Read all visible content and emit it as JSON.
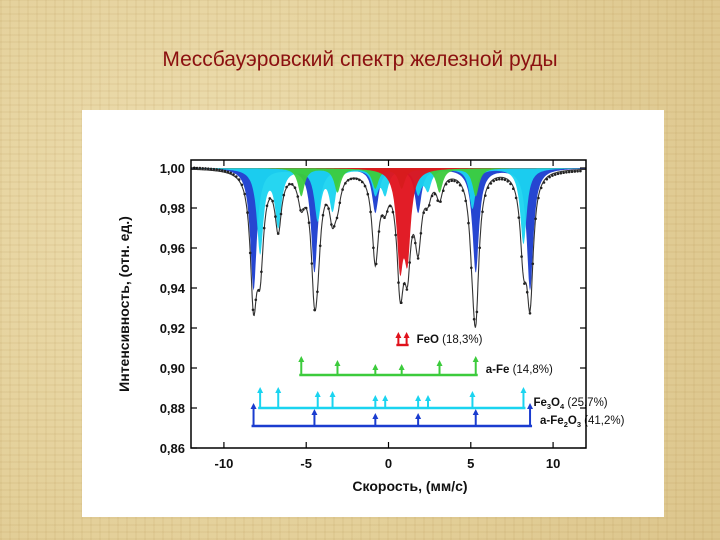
{
  "slide": {
    "title": "Мессбауэровский спектр железной руды"
  },
  "chart_data": {
    "type": "line",
    "title": "",
    "xlabel": "Скорость, (мм/с)",
    "ylabel": "Интенсивность, (отн. ед.)",
    "xlim": [
      -12,
      12
    ],
    "ylim": [
      0.86,
      1.004
    ],
    "xticks": [
      "-10",
      "-5",
      "0",
      "5",
      "10"
    ],
    "xtick_values": [
      -10,
      -5,
      0,
      5,
      10
    ],
    "yticks": [
      "0,86",
      "0,88",
      "0,90",
      "0,92",
      "0,94",
      "0,96",
      "0,98",
      "1,00"
    ],
    "ytick_values": [
      0.86,
      0.88,
      0.9,
      0.92,
      0.94,
      0.96,
      0.98,
      1.0
    ],
    "grid": false,
    "baseline": 1.0,
    "phases": [
      {
        "id": "fe2o3",
        "name_parts": [
          "a-Fe",
          "2",
          "O",
          "3"
        ],
        "percent": "(41,2%)",
        "color": "#1a3ccf",
        "stick_y": 0.871,
        "sticks": [
          {
            "x": -8.2,
            "h": 0.011
          },
          {
            "x": -4.5,
            "h": 0.008
          },
          {
            "x": -0.8,
            "h": 0.006
          },
          {
            "x": 1.8,
            "h": 0.006
          },
          {
            "x": 5.3,
            "h": 0.008
          },
          {
            "x": 8.6,
            "h": 0.011
          }
        ],
        "peaks": [
          {
            "x": -8.2,
            "d": 0.061
          },
          {
            "x": -4.5,
            "d": 0.052
          },
          {
            "x": -0.8,
            "d": 0.022
          },
          {
            "x": 1.8,
            "d": 0.022
          },
          {
            "x": 5.3,
            "d": 0.052
          },
          {
            "x": 8.6,
            "d": 0.061
          }
        ]
      },
      {
        "id": "fe3o4",
        "name_parts": [
          "Fe",
          "3",
          "O",
          "4"
        ],
        "percent": "(25,7%)",
        "color": "#1ad4f0",
        "stick_y": 0.88,
        "sticks": [
          {
            "x": -7.8,
            "h": 0.01
          },
          {
            "x": -6.7,
            "h": 0.01
          },
          {
            "x": -4.3,
            "h": 0.008
          },
          {
            "x": -3.4,
            "h": 0.008
          },
          {
            "x": -0.8,
            "h": 0.006
          },
          {
            "x": -0.2,
            "h": 0.006
          },
          {
            "x": 1.8,
            "h": 0.006
          },
          {
            "x": 2.4,
            "h": 0.006
          },
          {
            "x": 5.1,
            "h": 0.008
          },
          {
            "x": 8.2,
            "h": 0.01
          }
        ],
        "peaks": [
          {
            "x": -7.8,
            "d": 0.042
          },
          {
            "x": -6.7,
            "d": 0.028
          },
          {
            "x": -4.3,
            "d": 0.025
          },
          {
            "x": -3.4,
            "d": 0.02
          },
          {
            "x": -0.8,
            "d": 0.012
          },
          {
            "x": -0.2,
            "d": 0.012
          },
          {
            "x": 1.8,
            "d": 0.012
          },
          {
            "x": 2.4,
            "d": 0.01
          },
          {
            "x": 5.1,
            "d": 0.02
          },
          {
            "x": 8.2,
            "d": 0.038
          }
        ]
      },
      {
        "id": "fe",
        "name_parts": [
          "a-Fe"
        ],
        "percent": "(14,8%)",
        "color": "#3ccb3c",
        "stick_y": 0.8965,
        "sticks": [
          {
            "x": -5.3,
            "h": 0.009
          },
          {
            "x": -3.1,
            "h": 0.007
          },
          {
            "x": -0.8,
            "h": 0.005
          },
          {
            "x": 0.8,
            "h": 0.005
          },
          {
            "x": 3.1,
            "h": 0.007
          },
          {
            "x": 5.3,
            "h": 0.009
          }
        ],
        "peaks": [
          {
            "x": -5.3,
            "d": 0.014
          },
          {
            "x": -3.1,
            "d": 0.012
          },
          {
            "x": -0.8,
            "d": 0.01
          },
          {
            "x": 0.8,
            "d": 0.01
          },
          {
            "x": 3.1,
            "d": 0.012
          },
          {
            "x": 5.3,
            "d": 0.014
          }
        ]
      },
      {
        "id": "feo",
        "name_parts": [
          "FeO"
        ],
        "percent": "(18,3%)",
        "color": "#e0111b",
        "stick_y": 0.9115,
        "sticks": [
          {
            "x": 0.6,
            "h": 0.006
          },
          {
            "x": 1.1,
            "h": 0.006
          }
        ],
        "peaks": [
          {
            "x": 0.7,
            "d": 0.045
          },
          {
            "x": 1.15,
            "d": 0.04
          }
        ]
      }
    ],
    "measured_points_color": "#222222",
    "envelope_color": "#333333"
  }
}
